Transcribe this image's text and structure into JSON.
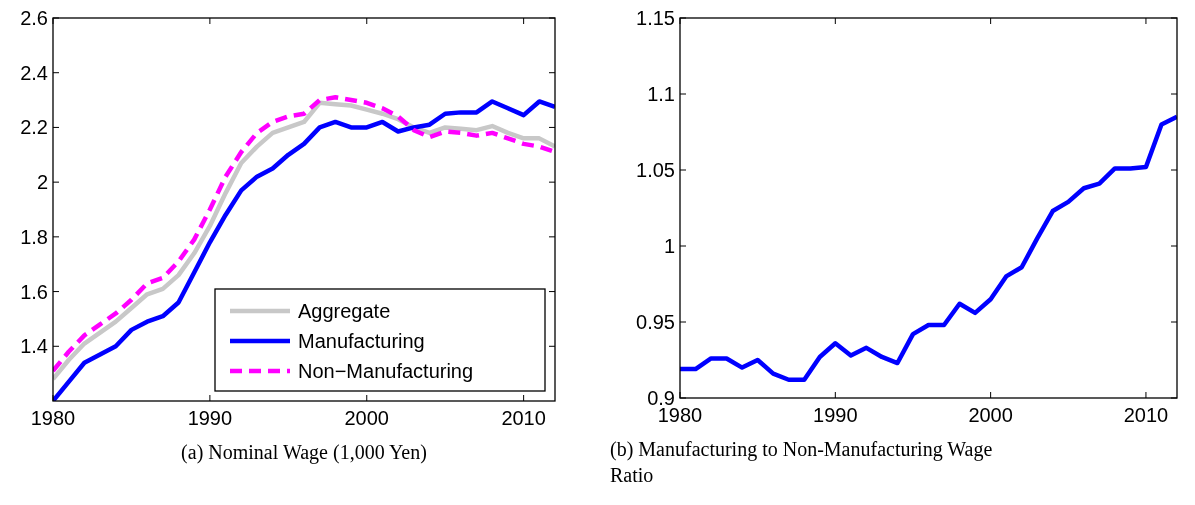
{
  "chart_data": [
    {
      "type": "line",
      "title": "(a) Nominal Wage (1,000 Yen)",
      "x": [
        1980,
        1981,
        1982,
        1983,
        1984,
        1985,
        1986,
        1987,
        1988,
        1989,
        1990,
        1991,
        1992,
        1993,
        1994,
        1995,
        1996,
        1997,
        1998,
        1999,
        2000,
        2001,
        2002,
        2003,
        2004,
        2005,
        2006,
        2007,
        2008,
        2009,
        2010,
        2011,
        2012
      ],
      "xlim": [
        1980,
        2012
      ],
      "xticks": [
        1980,
        1990,
        2000,
        2010
      ],
      "ylim": [
        1.2,
        2.6
      ],
      "yticks": [
        1.4,
        1.6,
        1.8,
        2,
        2.2,
        2.4,
        2.6
      ],
      "legend": "bottom right",
      "grid": false,
      "series": [
        {
          "name": "Aggregate",
          "color": "#c8c8c8",
          "line_style": "solid",
          "values": [
            1.28,
            1.35,
            1.41,
            1.45,
            1.49,
            1.54,
            1.59,
            1.61,
            1.66,
            1.74,
            1.84,
            1.96,
            2.07,
            2.13,
            2.18,
            2.2,
            2.22,
            2.29,
            2.285,
            2.28,
            2.265,
            2.25,
            2.23,
            2.2,
            2.18,
            2.2,
            2.195,
            2.19,
            2.205,
            2.18,
            2.16,
            2.16,
            2.13
          ]
        },
        {
          "name": "Manufacturing",
          "color": "#0000ff",
          "line_style": "solid",
          "values": [
            1.2,
            1.27,
            1.34,
            1.37,
            1.4,
            1.46,
            1.49,
            1.51,
            1.56,
            1.67,
            1.78,
            1.88,
            1.97,
            2.02,
            2.05,
            2.1,
            2.14,
            2.2,
            2.22,
            2.2,
            2.2,
            2.22,
            2.185,
            2.2,
            2.21,
            2.25,
            2.255,
            2.255,
            2.295,
            2.27,
            2.245,
            2.295,
            2.275
          ]
        },
        {
          "name": "Non−Manufacturing",
          "color": "#ff00ff",
          "line_style": "dashed",
          "values": [
            1.31,
            1.38,
            1.44,
            1.48,
            1.52,
            1.57,
            1.63,
            1.65,
            1.71,
            1.79,
            1.9,
            2.02,
            2.11,
            2.18,
            2.22,
            2.24,
            2.25,
            2.3,
            2.31,
            2.3,
            2.29,
            2.27,
            2.24,
            2.19,
            2.165,
            2.185,
            2.18,
            2.17,
            2.18,
            2.16,
            2.14,
            2.13,
            2.11
          ]
        }
      ]
    },
    {
      "type": "line",
      "title": "(b) Manufacturing to Non-Manufacturing Wage Ratio",
      "x": [
        1980,
        1981,
        1982,
        1983,
        1984,
        1985,
        1986,
        1987,
        1988,
        1989,
        1990,
        1991,
        1992,
        1993,
        1994,
        1995,
        1996,
        1997,
        1998,
        1999,
        2000,
        2001,
        2002,
        2003,
        2004,
        2005,
        2006,
        2007,
        2008,
        2009,
        2010,
        2011,
        2012
      ],
      "xlim": [
        1980,
        2012
      ],
      "xticks": [
        1980,
        1990,
        2000,
        2010
      ],
      "ylim": [
        0.9,
        1.15
      ],
      "yticks": [
        0.9,
        0.95,
        1,
        1.05,
        1.1,
        1.15
      ],
      "legend": false,
      "grid": false,
      "series": [
        {
          "color": "#0000ff",
          "line_style": "solid",
          "values": [
            0.919,
            0.919,
            0.926,
            0.926,
            0.92,
            0.925,
            0.916,
            0.912,
            0.912,
            0.927,
            0.936,
            0.928,
            0.933,
            0.927,
            0.923,
            0.942,
            0.948,
            0.948,
            0.962,
            0.956,
            0.965,
            0.98,
            0.986,
            1.005,
            1.023,
            1.029,
            1.038,
            1.041,
            1.051,
            1.051,
            1.052,
            1.08,
            1.085
          ]
        }
      ]
    }
  ]
}
